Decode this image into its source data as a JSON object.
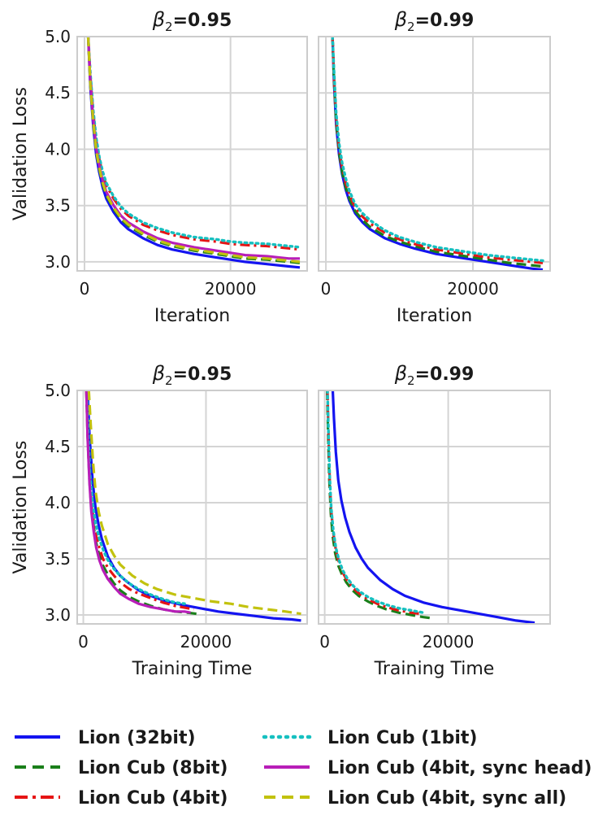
{
  "chart_data": [
    {
      "type": "line",
      "title_prefix": "β",
      "title_sub": "2",
      "title_value": "=0.95",
      "xlabel": "Iteration",
      "ylabel": "Validation Loss",
      "xlim": [
        -1000,
        30500
      ],
      "ylim": [
        2.92,
        5.0
      ],
      "xticks": [
        0,
        20000
      ],
      "xtick_labels": [
        "0",
        "20000"
      ],
      "yticks": [
        3.0,
        3.5,
        4.0,
        4.5,
        5.0
      ],
      "ytick_labels": [
        "3.0",
        "3.5",
        "4.0",
        "4.5",
        "5.0"
      ],
      "series": [
        {
          "name": "Lion (32bit)",
          "x": [
            500,
            800,
            1200,
            1600,
            2000,
            2500,
            3000,
            4000,
            5000,
            6000,
            8000,
            10000,
            12000,
            15000,
            18000,
            20000,
            22000,
            25000,
            28000,
            29500
          ],
          "values": [
            5.0,
            4.55,
            4.2,
            3.95,
            3.8,
            3.66,
            3.56,
            3.44,
            3.35,
            3.29,
            3.21,
            3.15,
            3.11,
            3.07,
            3.04,
            3.02,
            3.0,
            2.98,
            2.96,
            2.95
          ]
        },
        {
          "name": "Lion Cub (8bit)",
          "x": [
            500,
            800,
            1200,
            1600,
            2000,
            2500,
            3000,
            4000,
            5000,
            6000,
            8000,
            10000,
            12000,
            15000,
            18000,
            20000,
            22000,
            25000,
            28000,
            29500
          ],
          "values": [
            5.0,
            4.58,
            4.23,
            3.98,
            3.83,
            3.69,
            3.59,
            3.47,
            3.38,
            3.32,
            3.24,
            3.18,
            3.14,
            3.1,
            3.07,
            3.05,
            3.03,
            3.02,
            3.0,
            2.99
          ]
        },
        {
          "name": "Lion Cub (4bit)",
          "x": [
            500,
            800,
            1200,
            1600,
            2000,
            2500,
            3000,
            4000,
            5000,
            6000,
            8000,
            10000,
            12000,
            15000,
            18000,
            20000,
            22000,
            25000,
            28000,
            29500
          ],
          "values": [
            5.0,
            4.65,
            4.32,
            4.08,
            3.92,
            3.78,
            3.68,
            3.56,
            3.47,
            3.41,
            3.33,
            3.28,
            3.24,
            3.2,
            3.18,
            3.16,
            3.15,
            3.14,
            3.12,
            3.11
          ]
        },
        {
          "name": "Lion Cub (1bit)",
          "x": [
            500,
            800,
            1200,
            1600,
            2000,
            2500,
            3000,
            4000,
            5000,
            6000,
            8000,
            10000,
            12000,
            15000,
            18000,
            20000,
            22000,
            25000,
            28000,
            29500
          ],
          "values": [
            5.0,
            4.67,
            4.34,
            4.1,
            3.94,
            3.8,
            3.7,
            3.58,
            3.49,
            3.43,
            3.35,
            3.3,
            3.26,
            3.22,
            3.2,
            3.18,
            3.17,
            3.16,
            3.14,
            3.13
          ]
        },
        {
          "name": "Lion Cub (4bit, sync head)",
          "x": [
            500,
            800,
            1200,
            1600,
            2000,
            2500,
            3000,
            4000,
            5000,
            6000,
            8000,
            10000,
            12000,
            15000,
            18000,
            20000,
            22000,
            25000,
            28000,
            29500
          ],
          "values": [
            5.0,
            4.6,
            4.26,
            4.01,
            3.86,
            3.72,
            3.62,
            3.5,
            3.41,
            3.35,
            3.27,
            3.21,
            3.17,
            3.13,
            3.1,
            3.08,
            3.06,
            3.05,
            3.03,
            3.03
          ]
        },
        {
          "name": "Lion Cub (4bit, sync all)",
          "x": [
            500,
            800,
            1200,
            1600,
            2000,
            2500,
            3000,
            4000,
            5000,
            6000,
            8000,
            10000,
            12000,
            15000,
            18000,
            20000,
            22000,
            25000,
            28000,
            29500
          ],
          "values": [
            5.0,
            4.58,
            4.24,
            3.99,
            3.84,
            3.7,
            3.6,
            3.48,
            3.39,
            3.33,
            3.25,
            3.19,
            3.15,
            3.11,
            3.08,
            3.06,
            3.04,
            3.03,
            3.01,
            3.0
          ]
        }
      ]
    },
    {
      "type": "line",
      "title_prefix": "β",
      "title_sub": "2",
      "title_value": "=0.99",
      "xlabel": "Iteration",
      "ylabel": "",
      "xlim": [
        -1000,
        30500
      ],
      "ylim": [
        2.92,
        5.0
      ],
      "xticks": [
        0,
        20000
      ],
      "xtick_labels": [
        "0",
        "20000"
      ],
      "yticks": [
        3.0,
        3.5,
        4.0,
        4.5,
        5.0
      ],
      "ytick_labels": [],
      "series": [
        {
          "name": "Lion (32bit)",
          "x": [
            900,
            1100,
            1400,
            1800,
            2200,
            2700,
            3200,
            4000,
            5000,
            6000,
            8000,
            10000,
            12000,
            15000,
            18000,
            20000,
            22000,
            25000,
            28000,
            29500
          ],
          "values": [
            5.0,
            4.6,
            4.22,
            3.95,
            3.78,
            3.64,
            3.54,
            3.43,
            3.35,
            3.29,
            3.21,
            3.16,
            3.12,
            3.07,
            3.04,
            3.02,
            3.0,
            2.97,
            2.94,
            2.93
          ]
        },
        {
          "name": "Lion Cub (8bit)",
          "x": [
            900,
            1100,
            1400,
            1800,
            2200,
            2700,
            3200,
            4000,
            5000,
            6000,
            8000,
            10000,
            12000,
            15000,
            18000,
            20000,
            22000,
            25000,
            28000,
            29500
          ],
          "values": [
            5.0,
            4.62,
            4.24,
            3.97,
            3.8,
            3.66,
            3.56,
            3.45,
            3.37,
            3.31,
            3.23,
            3.18,
            3.14,
            3.09,
            3.06,
            3.04,
            3.02,
            2.99,
            2.97,
            2.96
          ]
        },
        {
          "name": "Lion Cub (4bit)",
          "x": [
            900,
            1100,
            1400,
            1800,
            2200,
            2700,
            3200,
            4000,
            5000,
            6000,
            8000,
            10000,
            12000,
            15000,
            18000,
            20000,
            22000,
            25000,
            28000,
            29500
          ],
          "values": [
            5.0,
            4.66,
            4.28,
            4.01,
            3.84,
            3.7,
            3.6,
            3.48,
            3.4,
            3.34,
            3.26,
            3.2,
            3.16,
            3.11,
            3.08,
            3.06,
            3.04,
            3.02,
            3.0,
            2.99
          ]
        },
        {
          "name": "Lion Cub (1bit)",
          "x": [
            900,
            1100,
            1400,
            1800,
            2200,
            2700,
            3200,
            4000,
            5000,
            6000,
            8000,
            10000,
            12000,
            15000,
            18000,
            20000,
            22000,
            25000,
            28000,
            29500
          ],
          "values": [
            5.0,
            4.7,
            4.32,
            4.05,
            3.88,
            3.74,
            3.63,
            3.51,
            3.43,
            3.37,
            3.28,
            3.22,
            3.18,
            3.13,
            3.1,
            3.08,
            3.06,
            3.04,
            3.02,
            3.01
          ]
        }
      ]
    },
    {
      "type": "line",
      "title_prefix": "β",
      "title_sub": "2",
      "title_value": "=0.95",
      "xlabel": "Training Time",
      "ylabel": "Validation Loss",
      "xlim": [
        -1000,
        36500
      ],
      "ylim": [
        2.92,
        5.0
      ],
      "xticks": [
        0,
        20000
      ],
      "xtick_labels": [
        "0",
        "20000"
      ],
      "yticks": [
        3.0,
        3.5,
        4.0,
        4.5,
        5.0
      ],
      "ytick_labels": [
        "3.0",
        "3.5",
        "4.0",
        "4.5",
        "5.0"
      ],
      "series": [
        {
          "name": "Lion (32bit)",
          "x": [
            700,
            1000,
            1500,
            2000,
            2500,
            3000,
            4000,
            5000,
            6000,
            7000,
            9000,
            11000,
            13000,
            16000,
            19000,
            22000,
            25000,
            28000,
            31000,
            34000,
            35500
          ],
          "values": [
            5.0,
            4.6,
            4.2,
            3.95,
            3.8,
            3.68,
            3.52,
            3.42,
            3.35,
            3.3,
            3.22,
            3.17,
            3.13,
            3.09,
            3.06,
            3.03,
            3.01,
            2.99,
            2.97,
            2.96,
            2.95
          ]
        },
        {
          "name": "Lion Cub (8bit)",
          "x": [
            500,
            700,
            1000,
            1300,
            1700,
            2100,
            2600,
            3200,
            4000,
            5000,
            6000,
            7500,
            9000,
            11000,
            13000,
            15000,
            17000,
            18500
          ],
          "values": [
            5.0,
            4.6,
            4.2,
            3.95,
            3.78,
            3.64,
            3.53,
            3.44,
            3.36,
            3.28,
            3.22,
            3.16,
            3.12,
            3.08,
            3.05,
            3.03,
            3.02,
            3.01
          ]
        },
        {
          "name": "Lion Cub (4bit)",
          "x": [
            500,
            700,
            1000,
            1300,
            1700,
            2100,
            2600,
            3200,
            4000,
            5000,
            6000,
            7500,
            9000,
            11000,
            13000,
            15000,
            17000,
            18000
          ],
          "values": [
            5.0,
            4.62,
            4.25,
            4.0,
            3.83,
            3.7,
            3.6,
            3.5,
            3.42,
            3.35,
            3.29,
            3.23,
            3.19,
            3.15,
            3.11,
            3.08,
            3.06,
            3.05
          ]
        },
        {
          "name": "Lion Cub (1bit)",
          "x": [
            600,
            800,
            1100,
            1500,
            2000,
            2600,
            3300,
            4000,
            5000,
            6000,
            7500,
            9000,
            11000,
            13000,
            15000,
            16500
          ],
          "values": [
            5.0,
            4.6,
            4.25,
            4.0,
            3.82,
            3.68,
            3.57,
            3.49,
            3.41,
            3.35,
            3.28,
            3.23,
            3.18,
            3.14,
            3.11,
            3.1
          ]
        },
        {
          "name": "Lion Cub (4bit, sync head)",
          "x": [
            500,
            700,
            1000,
            1300,
            1700,
            2100,
            2600,
            3200,
            4000,
            5000,
            6000,
            7500,
            9000,
            11000,
            13000,
            15000,
            16500,
            17500
          ],
          "values": [
            5.0,
            4.58,
            4.18,
            3.92,
            3.74,
            3.6,
            3.49,
            3.4,
            3.32,
            3.25,
            3.19,
            3.14,
            3.1,
            3.07,
            3.05,
            3.03,
            3.03,
            3.02
          ]
        },
        {
          "name": "Lion Cub (4bit, sync all)",
          "x": [
            900,
            1200,
            1600,
            2000,
            2500,
            3000,
            4000,
            5000,
            6000,
            8000,
            10000,
            12000,
            15000,
            18000,
            21000,
            24000,
            27000,
            30000,
            33000,
            35500
          ],
          "values": [
            5.0,
            4.7,
            4.35,
            4.1,
            3.92,
            3.8,
            3.63,
            3.53,
            3.45,
            3.35,
            3.28,
            3.23,
            3.18,
            3.15,
            3.12,
            3.1,
            3.07,
            3.05,
            3.03,
            3.01
          ]
        }
      ]
    },
    {
      "type": "line",
      "title_prefix": "β",
      "title_sub": "2",
      "title_value": "=0.99",
      "xlabel": "Training Time",
      "ylabel": "",
      "xlim": [
        -1000,
        36500
      ],
      "ylim": [
        2.92,
        5.0
      ],
      "xticks": [
        0,
        20000
      ],
      "xtick_labels": [
        "0",
        "20000"
      ],
      "yticks": [
        3.0,
        3.5,
        4.0,
        4.5,
        5.0
      ],
      "ytick_labels": [],
      "series": [
        {
          "name": "Lion (32bit)",
          "x": [
            1300,
            1500,
            1800,
            2200,
            2700,
            3300,
            4000,
            5000,
            6000,
            7000,
            9000,
            11000,
            13000,
            16000,
            19000,
            22000,
            25000,
            28000,
            31000,
            34000
          ],
          "values": [
            5.0,
            4.75,
            4.45,
            4.2,
            4.02,
            3.87,
            3.74,
            3.6,
            3.5,
            3.42,
            3.31,
            3.23,
            3.17,
            3.11,
            3.07,
            3.04,
            3.01,
            2.98,
            2.95,
            2.93
          ]
        },
        {
          "name": "Lion Cub (8bit)",
          "x": [
            400,
            550,
            750,
            1000,
            1300,
            1700,
            2200,
            2800,
            3500,
            4500,
            5500,
            7000,
            8500,
            10000,
            12000,
            14000,
            16000,
            17500
          ],
          "values": [
            5.0,
            4.6,
            4.2,
            3.9,
            3.7,
            3.55,
            3.44,
            3.36,
            3.29,
            3.22,
            3.17,
            3.12,
            3.08,
            3.05,
            3.02,
            3.0,
            2.98,
            2.97
          ]
        },
        {
          "name": "Lion Cub (4bit)",
          "x": [
            450,
            600,
            800,
            1050,
            1400,
            1800,
            2300,
            2900,
            3600,
            4600,
            5600,
            7000,
            8500,
            10000,
            12000,
            14000,
            15500
          ],
          "values": [
            5.0,
            4.62,
            4.22,
            3.93,
            3.73,
            3.58,
            3.47,
            3.38,
            3.31,
            3.24,
            3.19,
            3.14,
            3.1,
            3.07,
            3.04,
            3.02,
            3.01
          ]
        },
        {
          "name": "Lion Cub (1bit)",
          "x": [
            450,
            600,
            800,
            1050,
            1400,
            1800,
            2300,
            2900,
            3600,
            4600,
            5600,
            7000,
            8500,
            10000,
            12000,
            14000,
            16000
          ],
          "values": [
            5.0,
            4.63,
            4.24,
            3.95,
            3.75,
            3.6,
            3.49,
            3.4,
            3.33,
            3.26,
            3.21,
            3.16,
            3.12,
            3.09,
            3.06,
            3.04,
            3.02
          ]
        }
      ]
    }
  ],
  "legend": {
    "entries": [
      {
        "label": "Lion (32bit)",
        "color": "#1414f0",
        "style": "solid"
      },
      {
        "label": "Lion Cub (1bit)",
        "color": "#16c0c0",
        "style": "dotted"
      },
      {
        "label": "Lion Cub (8bit)",
        "color": "#1a7f1a",
        "style": "dashed"
      },
      {
        "label": "Lion Cub (4bit, sync head)",
        "color": "#b81eb8",
        "style": "solid"
      },
      {
        "label": "Lion Cub (4bit)",
        "color": "#e61414",
        "style": "dashdot"
      },
      {
        "label": "Lion Cub (4bit, sync all)",
        "color": "#c2c20e",
        "style": "dashed"
      }
    ]
  },
  "colors": {
    "Lion (32bit)": "#1414f0",
    "Lion Cub (8bit)": "#1a7f1a",
    "Lion Cub (4bit)": "#e61414",
    "Lion Cub (1bit)": "#16c0c0",
    "Lion Cub (4bit, sync head)": "#b81eb8",
    "Lion Cub (4bit, sync all)": "#c2c20e",
    "grid": "#d4d4d4",
    "frame": "#cccccc"
  }
}
